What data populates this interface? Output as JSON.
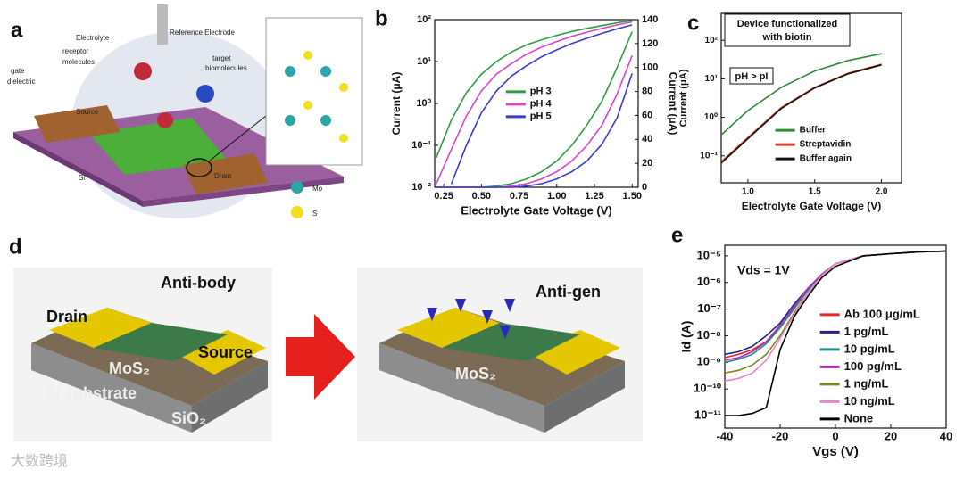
{
  "panel_labels": [
    "a",
    "b",
    "c",
    "d",
    "e"
  ],
  "panel_a": {
    "labels": [
      "Reference Electrode",
      "Electrolyte",
      "receptor",
      "molecules",
      "target",
      "biomolecules",
      "gate",
      "dielectric",
      "Source",
      "Drain",
      "Si",
      "Mo",
      "S"
    ]
  },
  "panel_d": {
    "labels": [
      "Anti-body",
      "Drain",
      "Source",
      "MoS₂",
      "Si substrate",
      "SiO₂",
      "Anti-gen",
      "MoS₂"
    ]
  },
  "watermark": "大数跨境",
  "chart_data": [
    {
      "type": "line",
      "xlabel": "Electrolyte Gate Voltage (V)",
      "ylabel": "Current (μA)",
      "y2label": "Current (μA)",
      "x": [
        0.2,
        0.3,
        0.4,
        0.5,
        0.6,
        0.7,
        0.8,
        0.9,
        1.0,
        1.1,
        1.2,
        1.3,
        1.4,
        1.5
      ],
      "xlim": [
        0.19,
        1.54
      ],
      "xticks": [
        {
          "value": 0.25,
          "label": "0.25"
        },
        {
          "value": 0.5,
          "label": "0.50"
        },
        {
          "value": 0.75,
          "label": "0.75"
        },
        {
          "value": 1.0,
          "label": "1.00"
        },
        {
          "value": 1.25,
          "label": "1.25"
        },
        {
          "value": 1.5,
          "label": "1.50"
        }
      ],
      "log_y": true,
      "ylim": [
        0.01,
        100
      ],
      "yticks": [
        {
          "value": 0.01,
          "label": "10⁻²"
        },
        {
          "value": 0.1,
          "label": "10⁻¹"
        },
        {
          "value": 1,
          "label": "10⁰"
        },
        {
          "value": 10,
          "label": "10¹"
        },
        {
          "value": 100,
          "label": "10²"
        }
      ],
      "y2lim": [
        0,
        140
      ],
      "y2ticks": [
        0,
        20,
        40,
        60,
        80,
        100,
        120,
        140
      ],
      "legend": "center",
      "series": [
        {
          "name": "pH 3",
          "color": "#2e9e44",
          "values": [
            0.05,
            0.4,
            1.8,
            5,
            10,
            17,
            25,
            33,
            42,
            52,
            62,
            72,
            84,
            95
          ]
        },
        {
          "name": "pH 4",
          "color": "#e044c4",
          "values": [
            0.012,
            0.08,
            0.5,
            2,
            5,
            9,
            15,
            22,
            30,
            40,
            50,
            62,
            75,
            88
          ]
        },
        {
          "name": "pH 5",
          "color": "#3b3bd0",
          "values": [
            null,
            0.012,
            0.1,
            0.6,
            2,
            4.5,
            8,
            13,
            19,
            27,
            36,
            47,
            60,
            75
          ]
        },
        {
          "color": "#2e9e44",
          "axis": "y2",
          "values": [
            0,
            0,
            0,
            0,
            1,
            3,
            7,
            13,
            22,
            35,
            52,
            72,
            100,
            130
          ]
        },
        {
          "color": "#e044c4",
          "axis": "y2",
          "values": [
            0,
            0,
            0,
            0,
            0,
            1,
            3,
            7,
            13,
            22,
            35,
            52,
            78,
            110
          ]
        },
        {
          "color": "#3b3bd0",
          "axis": "y2",
          "values": [
            0,
            0,
            0,
            0,
            0,
            0,
            1,
            3,
            7,
            13,
            22,
            36,
            58,
            95
          ]
        }
      ]
    },
    {
      "type": "line",
      "xlabel": "Electrolyte Gate Voltage (V)",
      "ylabel": "Current (μA)",
      "annotations": [
        "Device functionalized",
        "with biotin",
        "pH > pI"
      ],
      "x": [
        0.8,
        1.0,
        1.25,
        1.5,
        1.75,
        2.0
      ],
      "xlim": [
        0.8,
        2.15
      ],
      "xticks": [
        {
          "value": 1.0,
          "label": "1.0"
        },
        {
          "value": 1.5,
          "label": "1.5"
        },
        {
          "value": 2.0,
          "label": "2.0"
        }
      ],
      "log_y": true,
      "ylim": [
        0.02,
        500
      ],
      "yticks": [
        {
          "value": 0.1,
          "label": "10⁻¹"
        },
        {
          "value": 1,
          "label": "10⁰"
        },
        {
          "value": 10,
          "label": "10¹"
        },
        {
          "value": 100,
          "label": "10²"
        }
      ],
      "legend": "lower right",
      "series": [
        {
          "name": "Buffer",
          "color": "#2e8b3a",
          "values": [
            0.35,
            1.5,
            6,
            16,
            30,
            45
          ]
        },
        {
          "name": "Streptavidin",
          "color": "#e0402a",
          "values": [
            0.07,
            0.3,
            1.8,
            6,
            14,
            24
          ]
        },
        {
          "name": "Buffer again",
          "color": "#111111",
          "values": [
            0.065,
            0.28,
            1.7,
            5.8,
            13.5,
            23
          ]
        }
      ]
    },
    {
      "type": "line",
      "xlabel": "Vgs (V)",
      "ylabel": "Id (A)",
      "annotations": [
        "Vds = 1V"
      ],
      "x": [
        -40,
        -35,
        -30,
        -25,
        -20,
        -15,
        -10,
        -5,
        0,
        10,
        20,
        30,
        40
      ],
      "xlim": [
        -40,
        40
      ],
      "xticks": [
        -40,
        -20,
        0,
        20,
        40
      ],
      "log_y": true,
      "ylim": [
        3.4e-12,
        2.5e-05
      ],
      "yticks": [
        {
          "value": 1e-11,
          "label": "10⁻¹¹"
        },
        {
          "value": 1e-10,
          "label": "10⁻¹⁰"
        },
        {
          "value": 1e-09,
          "label": "10⁻⁹"
        },
        {
          "value": 1e-08,
          "label": "10⁻⁸"
        },
        {
          "value": 1e-07,
          "label": "10⁻⁷"
        },
        {
          "value": 1e-06,
          "label": "10⁻⁶"
        },
        {
          "value": 1e-05,
          "label": "10⁻⁵"
        }
      ],
      "legend": "center right",
      "series": [
        {
          "name": "Ab 100 μg/mL",
          "color": "#e8262a",
          "values": [
            1.5e-09,
            2e-09,
            3e-09,
            6e-09,
            2e-08,
            1e-07,
            5e-07,
            2e-06,
            5e-06,
            1e-05,
            1.2e-05,
            1.4e-05,
            1.5e-05
          ]
        },
        {
          "name": "1 pg/mL",
          "color": "#23238e",
          "values": [
            2e-09,
            2.5e-09,
            4e-09,
            1e-08,
            3e-08,
            1.5e-07,
            6e-07,
            2e-06,
            5e-06,
            1e-05,
            1.2e-05,
            1.4e-05,
            1.5e-05
          ]
        },
        {
          "name": "10 pg/mL",
          "color": "#1f8f8a",
          "values": [
            1e-09,
            1.3e-09,
            2e-09,
            5e-09,
            2e-08,
            1e-07,
            5e-07,
            2e-06,
            5e-06,
            1e-05,
            1.2e-05,
            1.4e-05,
            1.5e-05
          ]
        },
        {
          "name": "100 pg/mL",
          "color": "#b02cb0",
          "values": [
            1.2e-09,
            1.5e-09,
            2.5e-09,
            6e-09,
            2.5e-08,
            1.2e-07,
            6e-07,
            2e-06,
            5e-06,
            1e-05,
            1.2e-05,
            1.4e-05,
            1.5e-05
          ]
        },
        {
          "name": "1 ng/mL",
          "color": "#7a8a1e",
          "values": [
            4e-10,
            5e-10,
            8e-10,
            2e-09,
            1e-08,
            7e-08,
            4e-07,
            1.8e-06,
            5e-06,
            1e-05,
            1.2e-05,
            1.4e-05,
            1.5e-05
          ]
        },
        {
          "name": "10 ng/mL",
          "color": "#f080c8",
          "values": [
            2e-10,
            2.5e-10,
            4e-10,
            1.2e-09,
            8e-09,
            6e-08,
            4e-07,
            1.8e-06,
            5e-06,
            1e-05,
            1.2e-05,
            1.4e-05,
            1.5e-05
          ]
        },
        {
          "name": "None",
          "color": "#000000",
          "values": [
            1e-11,
            1e-11,
            1.2e-11,
            2e-11,
            3e-09,
            5e-08,
            3e-07,
            1.5e-06,
            4e-06,
            1e-05,
            1.2e-05,
            1.4e-05,
            1.5e-05
          ]
        }
      ]
    }
  ]
}
